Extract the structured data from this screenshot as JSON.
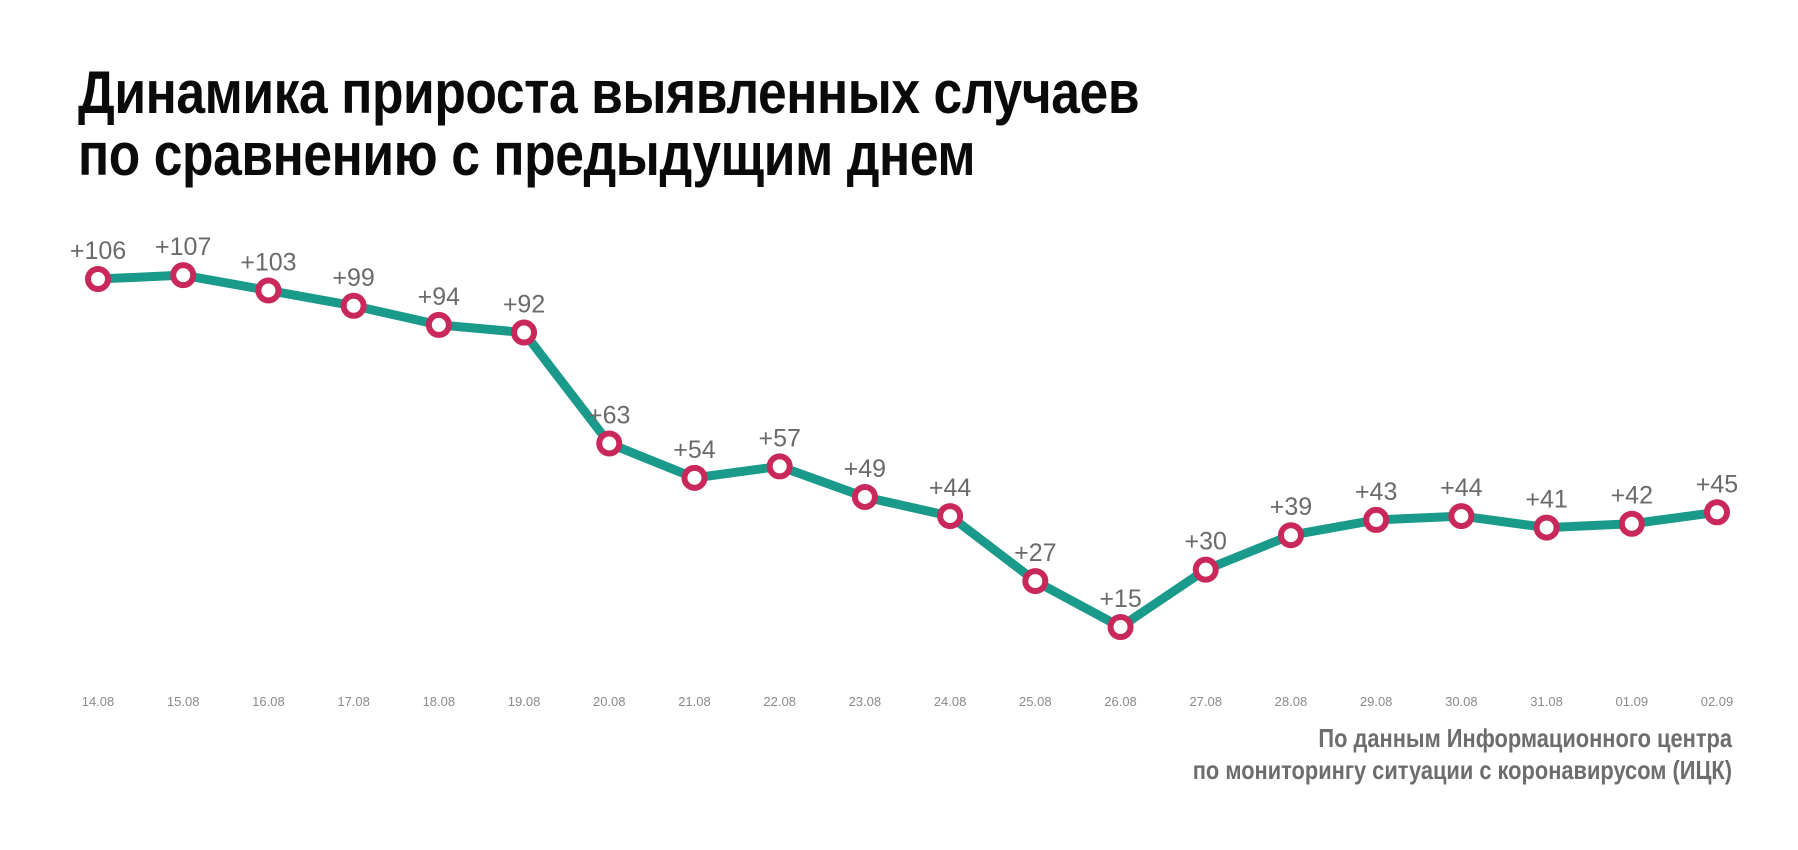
{
  "chart_data": {
    "type": "line",
    "title": [
      "Динамика прироста выявленных случаев",
      "по сравнению с предыдущим днем"
    ],
    "categories": [
      "14.08",
      "15.08",
      "16.08",
      "17.08",
      "18.08",
      "19.08",
      "20.08",
      "21.08",
      "22.08",
      "23.08",
      "24.08",
      "25.08",
      "26.08",
      "27.08",
      "28.08",
      "29.08",
      "30.08",
      "31.08",
      "01.09",
      "02.09"
    ],
    "values": [
      106,
      107,
      103,
      99,
      94,
      92,
      63,
      54,
      57,
      49,
      44,
      27,
      15,
      30,
      39,
      43,
      44,
      41,
      42,
      45
    ],
    "data_labels": [
      "+106",
      "+107",
      "+103",
      "+99",
      "+94",
      "+92",
      "+63",
      "+54",
      "+57",
      "+49",
      "+44",
      "+27",
      "+15",
      "+30",
      "+39",
      "+43",
      "+44",
      "+41",
      "+42",
      "+45"
    ],
    "xlabel": "",
    "ylabel": "",
    "ylim": [
      15,
      106
    ],
    "grid": false,
    "line_color": "#1a9a8a",
    "marker_color": "#c8285a",
    "source": [
      "По данным Информационного центра",
      "по мониторингу ситуации с коронавирусом (ИЦК)"
    ]
  }
}
